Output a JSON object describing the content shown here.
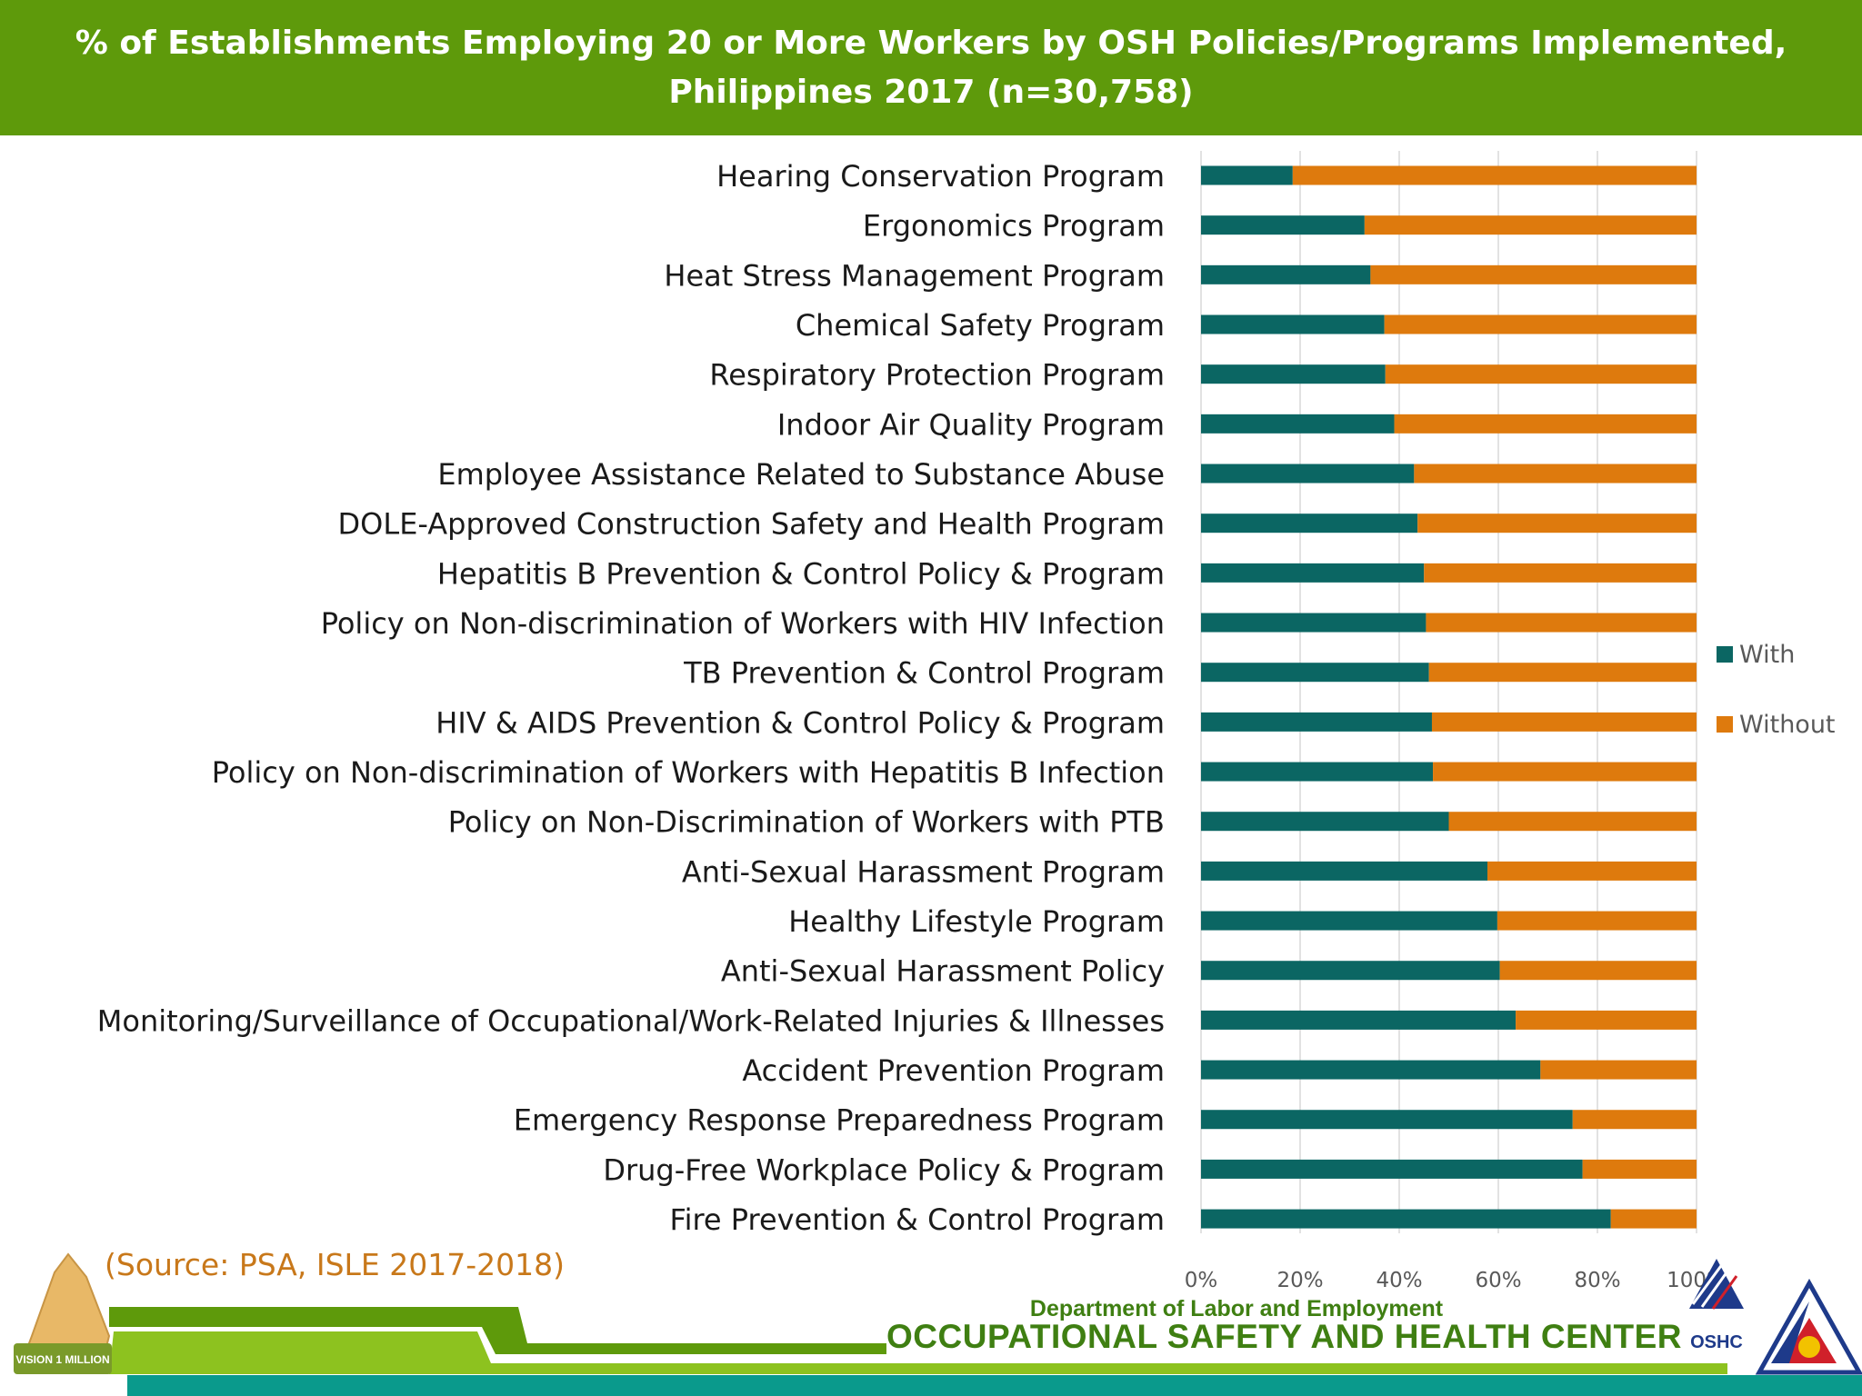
{
  "chart_data": {
    "type": "bar",
    "orientation": "horizontal",
    "stacked": "percent",
    "title": "% of Establishments Employing 20 or More Workers by OSH Policies/Programs Implemented, Philippines 2017 (n=30,758)",
    "title_lines": [
      "% of Establishments Employing 20 or More Workers by OSH Policies/Programs Implemented,",
      "Philippines 2017 (n=30,758)"
    ],
    "categories": [
      "Hearing Conservation Program",
      "Ergonomics Program",
      "Heat Stress Management Program",
      "Chemical Safety Program",
      "Respiratory Protection Program",
      "Indoor Air Quality Program",
      "Employee Assistance Related to Substance Abuse",
      "DOLE-Approved Construction Safety and Health Program",
      "Hepatitis B Prevention & Control Policy & Program",
      "Policy on Non-discrimination of Workers with HIV Infection",
      "TB Prevention & Control Program",
      "HIV & AIDS Prevention & Control Policy & Program",
      "Policy on Non-discrimination of Workers with Hepatitis B Infection",
      "Policy on Non-Discrimination of Workers with PTB",
      "Anti-Sexual Harassment Program",
      "Healthy Lifestyle Program",
      "Anti-Sexual Harassment Policy",
      "Monitoring/Surveillance of Occupational/Work-Related Injuries & Illnesses",
      "Accident Prevention Program",
      "Emergency Response Preparedness Program",
      "Drug-Free Workplace Policy & Program",
      "Fire Prevention & Control Program"
    ],
    "series": [
      {
        "name": "With",
        "color": "#0b6663",
        "values": [
          18.5,
          33.0,
          34.2,
          37.0,
          37.2,
          39.0,
          43.0,
          43.7,
          45.0,
          45.4,
          46.0,
          46.6,
          46.8,
          50.0,
          57.8,
          59.8,
          60.3,
          63.5,
          68.5,
          75.0,
          77.0,
          82.7
        ]
      },
      {
        "name": "Without",
        "color": "#de7a0d",
        "values": [
          81.5,
          67.0,
          65.8,
          63.0,
          62.8,
          61.0,
          57.0,
          56.3,
          55.0,
          54.6,
          54.0,
          53.4,
          53.2,
          50.0,
          42.2,
          40.2,
          39.7,
          36.5,
          31.5,
          25.0,
          23.0,
          17.3
        ]
      }
    ],
    "xlim": [
      0,
      100
    ],
    "xticks": [
      "0%",
      "20%",
      "40%",
      "60%",
      "80%",
      "100%"
    ],
    "grid": true,
    "legend": "right"
  },
  "source": "(Source:  PSA, ISLE 2017-2018)",
  "footer": {
    "department": "Department of Labor and Employment",
    "center": "OCCUPATIONAL SAFETY AND HEALTH CENTER",
    "oshc_logo_text": "OSHC",
    "vision_logo_text": "VISION 1 MILLION"
  },
  "colors": {
    "title_bg": "#5e9a0b",
    "source_text": "#c8781a",
    "footer_green": "#3f7f12",
    "footer_band_light": "#8dc21f",
    "footer_band_teal": "#0a9a8c"
  }
}
